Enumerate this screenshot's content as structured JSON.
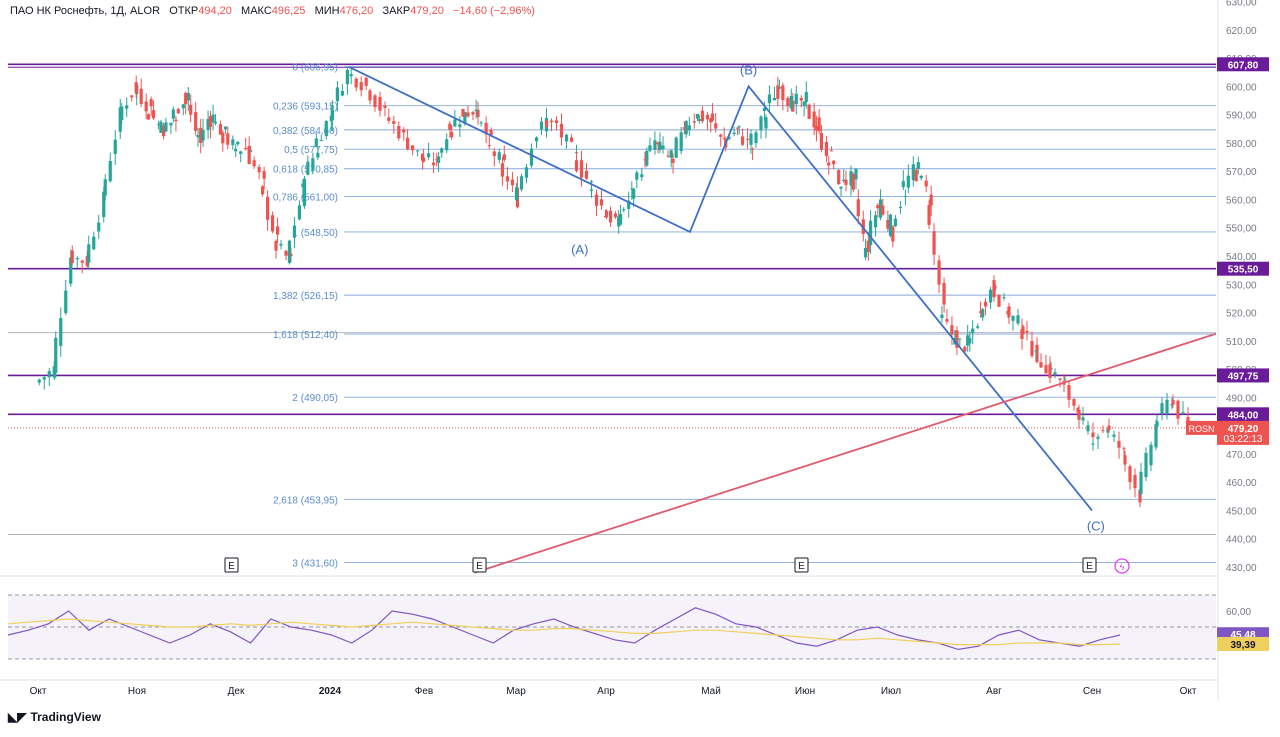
{
  "header": {
    "instrument": "ПАО НК Роснефть, 1Д, ALOR",
    "open_label": "ОТКР",
    "open_value": "494,20",
    "high_label": "МАКС",
    "high_value": "496,25",
    "low_label": "МИН",
    "low_value": "476,20",
    "close_label": "ЗАКР",
    "close_value": "479,20",
    "change": "−14,60 (−2,96%)"
  },
  "branding": {
    "logo_text": "TradingView",
    "logo_icon": "tradingview-logo-icon"
  },
  "colors": {
    "up": "#26a69a",
    "down": "#ef5350",
    "fib": "#5b8ccf",
    "horizontal": "#6a1b9a",
    "trend": "#e05a6d",
    "rsi": "#7e57c2",
    "rsi_ma": "#f0d05c"
  },
  "chart_data": [
    {
      "type": "candlestick",
      "title": "",
      "y_axis": {
        "range": [
          425,
          635
        ],
        "ticks": [
          "430,00",
          "440,00",
          "450,00",
          "460,00",
          "470,00",
          "480,00",
          "490,00",
          "500,00",
          "510,00",
          "520,00",
          "530,00",
          "540,00",
          "550,00",
          "560,00",
          "570,00",
          "580,00",
          "590,00",
          "600,00",
          "610,00",
          "620,00",
          "630,00"
        ]
      },
      "x_axis": {
        "ticks": [
          "Окт",
          "Ноя",
          "Дек",
          "2024",
          "Фев",
          "Мар",
          "Апр",
          "Май",
          "Июн",
          "Июл",
          "Авг",
          "Сен",
          "Окт"
        ]
      },
      "close_path": [
        [
          "Окт",
          500
        ],
        [
          "Окт",
          540
        ],
        [
          "Окт",
          538
        ],
        [
          "Окт",
          560
        ],
        [
          "Окт",
          590
        ],
        [
          "Окт",
          600
        ],
        [
          "Ноя",
          592
        ],
        [
          "Ноя",
          585
        ],
        [
          "Ноя",
          588
        ],
        [
          "Ноя",
          598
        ],
        [
          "Ноя",
          580
        ],
        [
          "Ноя",
          590
        ],
        [
          "Ноя",
          583
        ],
        [
          "Ноя",
          578
        ],
        [
          "Дек",
          578
        ],
        [
          "Дек",
          565
        ],
        [
          "Дек",
          545
        ],
        [
          "Дек",
          538
        ],
        [
          "Дек",
          565
        ],
        [
          "Дек",
          578
        ],
        [
          "Дек",
          590
        ],
        [
          "2024",
          605
        ],
        [
          "2024",
          600
        ],
        [
          "2024",
          590
        ],
        [
          "2024",
          582
        ],
        [
          "2024",
          574
        ],
        [
          "Фев",
          573
        ],
        [
          "Фев",
          585
        ],
        [
          "Фев",
          590
        ],
        [
          "Фев",
          592
        ],
        [
          "Фев",
          580
        ],
        [
          "Фев",
          572
        ],
        [
          "Фев",
          560
        ],
        [
          "Мар",
          578
        ],
        [
          "Мар",
          588
        ],
        [
          "Мар",
          585
        ],
        [
          "Мар",
          575
        ],
        [
          "Мар",
          565
        ],
        [
          "Мар",
          555
        ],
        [
          "Апр",
          552
        ],
        [
          "Апр",
          562
        ],
        [
          "Апр",
          575
        ],
        [
          "Апр",
          580
        ],
        [
          "Апр",
          573
        ],
        [
          "Апр",
          585
        ],
        [
          "Апр",
          590
        ],
        [
          "Апр",
          588
        ],
        [
          "Май",
          580
        ],
        [
          "Май",
          585
        ],
        [
          "Май",
          578
        ],
        [
          "Май",
          590
        ],
        [
          "Май",
          600
        ],
        [
          "Май",
          594
        ],
        [
          "Май",
          595
        ],
        [
          "Июн",
          585
        ],
        [
          "Июн",
          575
        ],
        [
          "Июн",
          565
        ],
        [
          "Июн",
          568
        ],
        [
          "Июн",
          540
        ],
        [
          "Июн",
          560
        ],
        [
          "Июн",
          548
        ],
        [
          "Июл",
          563
        ],
        [
          "Июл",
          572
        ],
        [
          "Июл",
          560
        ],
        [
          "Июл",
          520
        ],
        [
          "Июл",
          510
        ],
        [
          "Июл",
          508
        ],
        [
          "Июл",
          520
        ],
        [
          "Июл",
          530
        ],
        [
          "Авг",
          520
        ],
        [
          "Авг",
          515
        ],
        [
          "Авг",
          505
        ],
        [
          "Авг",
          500
        ],
        [
          "Авг",
          495
        ],
        [
          "Авг",
          485
        ],
        [
          "Авг",
          475
        ],
        [
          "Сен",
          480
        ],
        [
          "Сен",
          470
        ],
        [
          "Сен",
          455
        ],
        [
          "Сен",
          480
        ],
        [
          "Сен",
          490
        ],
        [
          "Сен",
          479.2
        ]
      ],
      "last_close": 479.2,
      "price_labels": [
        {
          "value": "607,80",
          "kind": "level"
        },
        {
          "value": "535,50",
          "kind": "level"
        },
        {
          "value": "497,75",
          "kind": "level"
        },
        {
          "value": "484,00",
          "kind": "level"
        },
        {
          "value": "479,20",
          "kind": "last"
        },
        {
          "value": "03:22:13",
          "kind": "timer"
        }
      ],
      "symbol_tag": "ROSN",
      "horizontal_levels": [
        607.8,
        535.5,
        497.75,
        484.0
      ],
      "fibonacci": [
        {
          "label": "0 (606,95)",
          "value": 606.95
        },
        {
          "label": "0,236 (593,15)",
          "value": 593.15
        },
        {
          "label": "0,382 (584,60)",
          "value": 584.6
        },
        {
          "label": "0,5 (577,75)",
          "value": 577.75
        },
        {
          "label": "0,618 (570,85)",
          "value": 570.85
        },
        {
          "label": "0,786 (561,00)",
          "value": 561.0
        },
        {
          "label": "1 (548,50)",
          "value": 548.5
        },
        {
          "label": "1,382 (526,15)",
          "value": 526.15
        },
        {
          "label": "1,618 (512,40)",
          "value": 512.4
        },
        {
          "label": "2 (490,05)",
          "value": 490.05
        },
        {
          "label": "2,618 (453,95)",
          "value": 453.95
        },
        {
          "label": "3 (431,60)",
          "value": 431.6
        }
      ],
      "wave_labels": [
        "(A)",
        "(B)",
        "(C)"
      ],
      "wave_points": [
        [
          "2024",
          606.9
        ],
        [
          "Апр",
          548.5
        ],
        [
          "Май",
          600
        ],
        [
          "Сен",
          450
        ]
      ],
      "trend_line": [
        [
          "Фев",
          428
        ],
        [
          "Окт",
          512.5
        ]
      ],
      "event_markers": [
        "E",
        "E",
        "E",
        "E"
      ]
    },
    {
      "type": "line",
      "title": "",
      "y_axis": {
        "ticks": [
          "60,00"
        ]
      },
      "series": [
        {
          "name": "",
          "values": [
            45,
            48,
            52,
            60,
            48,
            55,
            50,
            45,
            40,
            45,
            52,
            47,
            40,
            55,
            50,
            48,
            45,
            40,
            48,
            60,
            58,
            55,
            50,
            45,
            40,
            48,
            52,
            55,
            50,
            46,
            42,
            40,
            48,
            55,
            62,
            58,
            52,
            50,
            45,
            40,
            38,
            42,
            48,
            50,
            45,
            42,
            40,
            36,
            38,
            45,
            48,
            42,
            40,
            38,
            42,
            45
          ]
        },
        {
          "name": "",
          "values": [
            52,
            53,
            54,
            55,
            54,
            53,
            52,
            51,
            50,
            50,
            51,
            52,
            51,
            52,
            53,
            52,
            51,
            50,
            51,
            52,
            53,
            52,
            51,
            50,
            49,
            48,
            48,
            49,
            49,
            48,
            47,
            46,
            46,
            47,
            48,
            48,
            47,
            46,
            45,
            44,
            43,
            42,
            42,
            43,
            42,
            41,
            40,
            39,
            39,
            39,
            40,
            40,
            40,
            39,
            39,
            39.39
          ]
        }
      ],
      "value_labels": [
        "45,48",
        "39,39"
      ]
    }
  ]
}
